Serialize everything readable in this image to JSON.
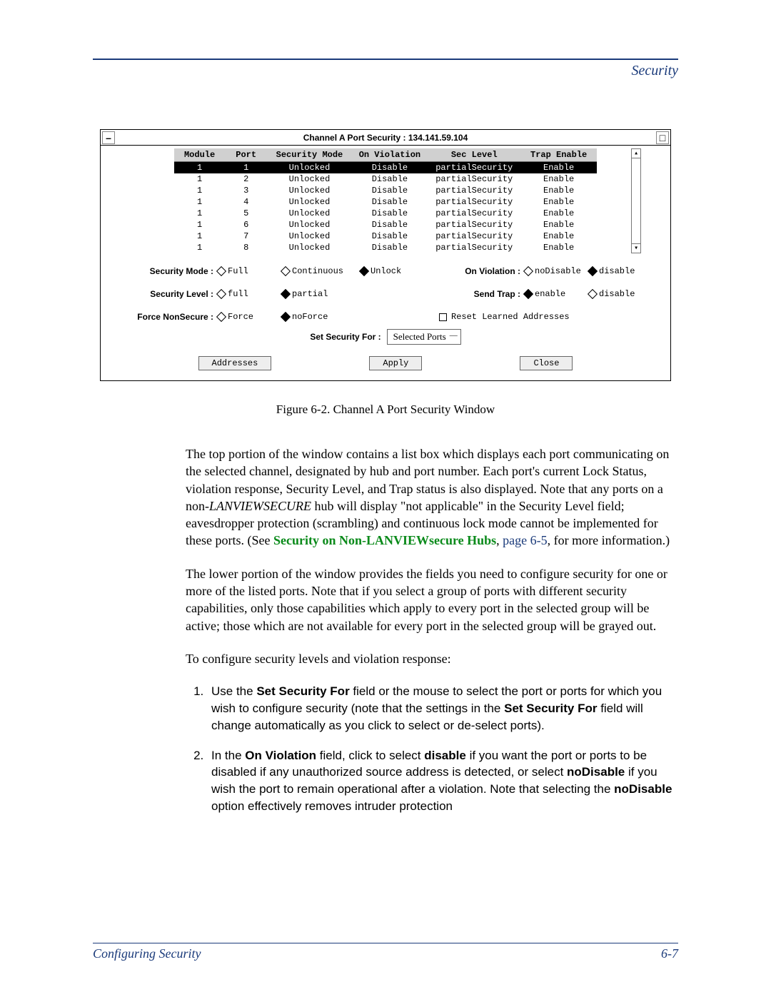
{
  "header": {
    "title": "Security"
  },
  "dialog": {
    "title": "Channel A Port Security : 134.141.59.104",
    "columns": [
      "Module",
      "Port",
      "Security Mode",
      "On Violation",
      "Sec Level",
      "Trap Enable"
    ],
    "rows": [
      {
        "module": "1",
        "port": "1",
        "mode": "Unlocked",
        "viol": "Disable",
        "level": "partialSecurity",
        "trap": "Enable",
        "sel": true
      },
      {
        "module": "1",
        "port": "2",
        "mode": "Unlocked",
        "viol": "Disable",
        "level": "partialSecurity",
        "trap": "Enable",
        "sel": false
      },
      {
        "module": "1",
        "port": "3",
        "mode": "Unlocked",
        "viol": "Disable",
        "level": "partialSecurity",
        "trap": "Enable",
        "sel": false
      },
      {
        "module": "1",
        "port": "4",
        "mode": "Unlocked",
        "viol": "Disable",
        "level": "partialSecurity",
        "trap": "Enable",
        "sel": false
      },
      {
        "module": "1",
        "port": "5",
        "mode": "Unlocked",
        "viol": "Disable",
        "level": "partialSecurity",
        "trap": "Enable",
        "sel": false
      },
      {
        "module": "1",
        "port": "6",
        "mode": "Unlocked",
        "viol": "Disable",
        "level": "partialSecurity",
        "trap": "Enable",
        "sel": false
      },
      {
        "module": "1",
        "port": "7",
        "mode": "Unlocked",
        "viol": "Disable",
        "level": "partialSecurity",
        "trap": "Enable",
        "sel": false
      },
      {
        "module": "1",
        "port": "8",
        "mode": "Unlocked",
        "viol": "Disable",
        "level": "partialSecurity",
        "trap": "Enable",
        "sel": false
      }
    ],
    "securityMode": {
      "label": "Security Mode :",
      "opts": [
        "Full",
        "Continuous",
        "Unlock"
      ],
      "selected": 0
    },
    "onViolation": {
      "label": "On Violation :",
      "opts": [
        "noDisable",
        "disable"
      ],
      "selected": 0
    },
    "securityLevel": {
      "label": "Security Level :",
      "opts": [
        "full",
        "partial"
      ],
      "selected": 0
    },
    "sendTrap": {
      "label": "Send Trap :",
      "opts": [
        "enable",
        "disable"
      ],
      "selected": 0
    },
    "forceNonSecure": {
      "label": "Force NonSecure :",
      "opts": [
        "Force",
        "noForce"
      ],
      "selected": 0
    },
    "resetLearned": "Reset Learned Addresses",
    "setSecurityFor": {
      "label": "Set Security For :",
      "value": "Selected Ports"
    },
    "buttons": {
      "addresses": "Addresses",
      "apply": "Apply",
      "close": "Close"
    }
  },
  "figureCaption": "Figure 6-2. Channel A Port Security Window",
  "para1_a": "The top portion of the window contains a list box which displays each port communicating on the selected channel, designated by hub and port number. Each port's current Lock Status, violation response, Security Level, and Trap status is also displayed. Note that any ports on a non-",
  "para1_b": "LANVIEW",
  "para1_c": "SECURE",
  "para1_d": " hub will display \"not applicable\" in the Security Level field; eavesdropper protection (scrambling) and continuous lock mode cannot be implemented for these ports. (See ",
  "para1_link": "Security on Non-LANVIEWsecure Hubs",
  "para1_e": ", ",
  "para1_page": "page 6-5",
  "para1_f": ", for more information.)",
  "para2": "The lower portion of the window provides the fields you need to configure security for one or more of the listed ports. Note that if you select a group of ports with different security capabilities, only those capabilities which apply to every port in the selected group will be active; those which are not available for every port in the selected group will be grayed out.",
  "para3": "To configure security levels and violation response:",
  "step1_a": "Use the ",
  "step1_b": "Set Security For",
  "step1_c": " field or the mouse to select the port or ports for which you wish to configure security (note that the settings in the ",
  "step1_d": "Set Security For",
  "step1_e": " field will change automatically as you click to select or de-select ports).",
  "step2_a": "In the ",
  "step2_b": "On Violation",
  "step2_c": " field, click to select ",
  "step2_d": "disable",
  "step2_e": " if you want the port or ports to be disabled if any unauthorized source address is detected, or select ",
  "step2_f": "noDisable",
  "step2_g": " if you wish the port to remain operational after a violation. Note that selecting the ",
  "step2_h": "noDisable",
  "step2_i": " option effectively removes intruder protection",
  "footer": {
    "left": "Configuring Security",
    "right": "6-7"
  }
}
